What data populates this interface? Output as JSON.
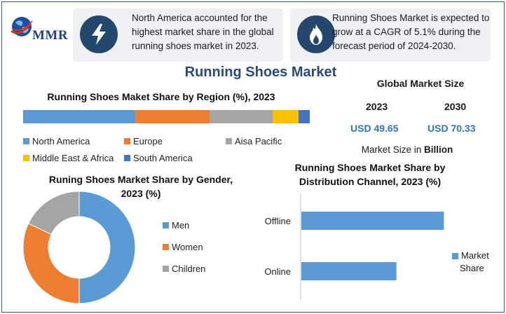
{
  "logo": {
    "text": "MMR"
  },
  "info_boxes": [
    {
      "icon": "lightning-icon",
      "text_lines": [
        "North America accounted for the",
        "highest market share in the global",
        "running shoes market in 2023."
      ]
    },
    {
      "icon": "flame-icon",
      "text_lines": [
        "Running Shoes Market is expected to",
        "grow at a CAGR of 5.1% during the",
        "forecast period of 2024-2030."
      ]
    }
  ],
  "main_title": "Running Shoes Market",
  "global_market_size": {
    "title": "Global Market Size",
    "year_a": "2023",
    "year_b": "2030",
    "value_a": "USD 49.65",
    "value_b": "USD 70.33",
    "unit_prefix": "Market Size in",
    "unit_bold": "Billion"
  },
  "colors": {
    "blue": "#5b9bd5",
    "orange": "#ed7d31",
    "gray": "#a5a5a5",
    "yellow": "#ffc000",
    "dark_blue": "#4472c4",
    "value_blue": "#2f74b5",
    "title_navy": "#2a4a7a"
  },
  "chart_data": [
    {
      "type": "bar",
      "orientation": "horizontal-stacked-100",
      "title": "Running Shoes Maket Share by Region (%), 2023",
      "series": [
        {
          "name": "North America",
          "value": 39,
          "color": "#5b9bd5"
        },
        {
          "name": "Europe",
          "value": 26,
          "color": "#ed7d31"
        },
        {
          "name": "Aisa Pacific",
          "value": 22,
          "color": "#a5a5a5"
        },
        {
          "name": "Middle East & Africa",
          "value": 9,
          "color": "#ffc000"
        },
        {
          "name": "South America",
          "value": 4,
          "color": "#4472c4"
        }
      ],
      "legend_position": "bottom"
    },
    {
      "type": "pie",
      "variant": "donut",
      "title_lines": [
        "Runing Shoes Market Share by Gender,",
        "2023 (%)"
      ],
      "slices": [
        {
          "name": "Men",
          "value": 50,
          "color": "#5b9bd5"
        },
        {
          "name": "Women",
          "value": 32,
          "color": "#ed7d31"
        },
        {
          "name": "Children",
          "value": 18,
          "color": "#a5a5a5"
        }
      ],
      "legend_position": "right"
    },
    {
      "type": "bar",
      "orientation": "horizontal",
      "title_lines": [
        "Running Shoes Market Share by",
        "Distribution Channel, 2023 (%)"
      ],
      "categories": [
        "Offline",
        "Online"
      ],
      "series": [
        {
          "name_lines": [
            "Market",
            "Share"
          ],
          "values": [
            63,
            42
          ],
          "color": "#5b9bd5"
        }
      ],
      "xlim": [
        0,
        70
      ],
      "legend_position": "right"
    }
  ]
}
